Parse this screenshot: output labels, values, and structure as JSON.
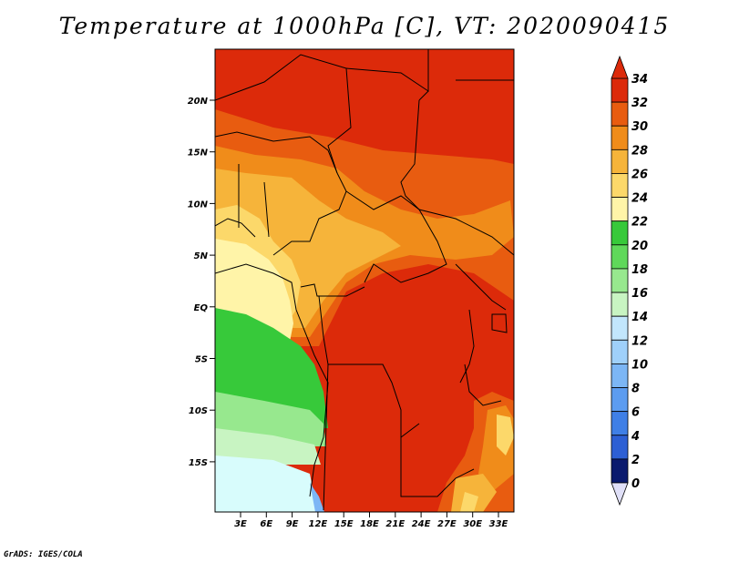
{
  "title": "Temperature at 1000hPa [C], VT: 2020090415",
  "credit": "GrADS: IGES/COLA",
  "map": {
    "lat_ticks": [
      "20N",
      "15N",
      "10N",
      "5N",
      "EQ",
      "5S",
      "10S",
      "15S"
    ],
    "lon_ticks": [
      "3E",
      "6E",
      "9E",
      "12E",
      "15E",
      "18E",
      "21E",
      "24E",
      "27E",
      "30E",
      "33E"
    ]
  },
  "colorbar": {
    "levels": [
      "0",
      "2",
      "4",
      "6",
      "8",
      "10",
      "12",
      "14",
      "16",
      "18",
      "20",
      "22",
      "24",
      "26",
      "28",
      "30",
      "32",
      "34"
    ],
    "colors": [
      "#0a1a6e",
      "#1d3fb8",
      "#2d5fd4",
      "#3f7fe6",
      "#5c9cf0",
      "#7cb6f5",
      "#9fd0fa",
      "#c2e6fc",
      "#c8f4c2",
      "#97e88e",
      "#5fd85a",
      "#37c93a",
      "#fff4a8",
      "#fcd86a",
      "#f6b43a",
      "#f08c1a",
      "#e85c10",
      "#dc2a0a",
      "#d21a08"
    ],
    "under_color": "#e0e0f8",
    "over_color": "#dc2a0a"
  }
}
